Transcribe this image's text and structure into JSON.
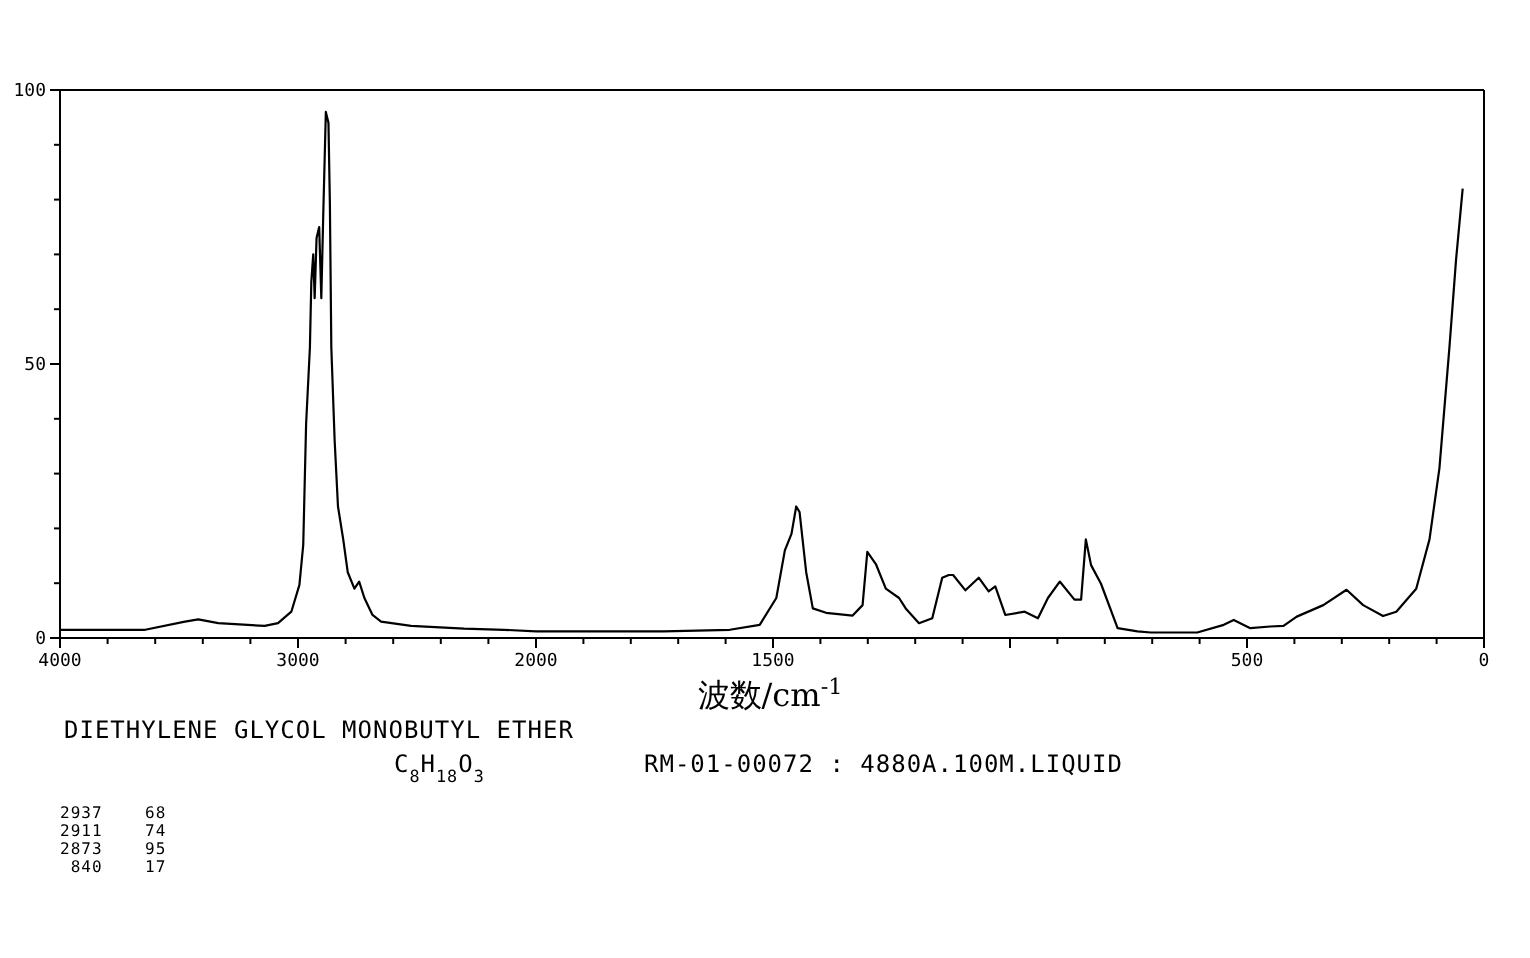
{
  "chart_data": [
    {
      "type": "line",
      "xlim": [
        4000,
        2000
      ],
      "ylim": [
        0,
        100
      ],
      "xticks": [
        4000,
        3000,
        2000
      ],
      "yticks": [
        0,
        50,
        100
      ],
      "grid": false,
      "marker": "none",
      "line_style": "solid",
      "annotations": [
        "DIETHYLENE GLYCOL MONOBUTYL ETHER",
        "C$_{8}$H$_{18}$O$_{3}$",
        "RM-01-00072 : 4880A.100M.LIQUID",
        "2937    68",
        "2911    74",
        "2873    95",
        " 840    17"
      ],
      "series": [
        {
          "color": "#000000",
          "x": [
            4000,
            3642,
            3475,
            3419,
            3335,
            3140,
            3084,
            3028,
            2994,
            2978,
            2966,
            2950,
            2944,
            2936,
            2930,
            2922,
            2911,
            2902,
            2894,
            2883,
            2872,
            2866,
            2860,
            2846,
            2832,
            2810,
            2791,
            2763,
            2743,
            2721,
            2687,
            2651,
            2525,
            2302,
            2134,
            2000
          ],
          "values": [
            1.5,
            1.5,
            3,
            3.4,
            2.7,
            2.2,
            2.7,
            4.8,
            9.7,
            17,
            39,
            53,
            65,
            70,
            62,
            73,
            75,
            62,
            77,
            96,
            94,
            79,
            53,
            36,
            24,
            18,
            12,
            9,
            10.3,
            7.3,
            4.2,
            3,
            2.2,
            1.7,
            1.5,
            1.2
          ]
        }
      ]
    },
    {
      "type": "line",
      "xlabel": "波数/cm$^{-1}$",
      "xlim": [
        2000,
        0
      ],
      "ylim": [
        0,
        100
      ],
      "xticks": [
        {
          "value": 2000,
          "label": null
        },
        1500,
        {
          "value": 1000,
          "label": null
        },
        500,
        0
      ],
      "tick_labels": "x",
      "grid": false,
      "marker": "none",
      "line_style": "solid",
      "series": [
        {
          "color": "#000000",
          "x": [
            2000,
            1731,
            1591,
            1528,
            1493,
            1475,
            1461,
            1451,
            1444,
            1430,
            1416,
            1388,
            1332,
            1311,
            1301,
            1283,
            1262,
            1234,
            1220,
            1192,
            1164,
            1143,
            1129,
            1120,
            1094,
            1066,
            1045,
            1031,
            1010,
            969,
            941,
            920,
            895,
            864,
            850,
            840,
            829,
            808,
            773,
            731,
            703,
            605,
            549,
            528,
            493,
            451,
            423,
            395,
            339,
            290,
            255,
            213,
            185,
            143,
            115,
            94,
            73,
            59,
            45
          ],
          "values": [
            1.2,
            1.2,
            1.5,
            2.4,
            7.3,
            16,
            19,
            24,
            23,
            12,
            5.4,
            4.6,
            4.1,
            6,
            15.7,
            13.5,
            9,
            7.3,
            5.4,
            2.7,
            3.6,
            11,
            11.5,
            11.5,
            8.7,
            11,
            8.5,
            9.4,
            4.2,
            4.8,
            3.6,
            7.3,
            10.3,
            7,
            7,
            18,
            13.3,
            9.9,
            1.8,
            1.2,
            1,
            1,
            2.4,
            3.3,
            1.8,
            2.1,
            2.2,
            3.9,
            6,
            8.8,
            6,
            4,
            4.8,
            9,
            18,
            31,
            53,
            69,
            82
          ]
        }
      ]
    }
  ]
}
